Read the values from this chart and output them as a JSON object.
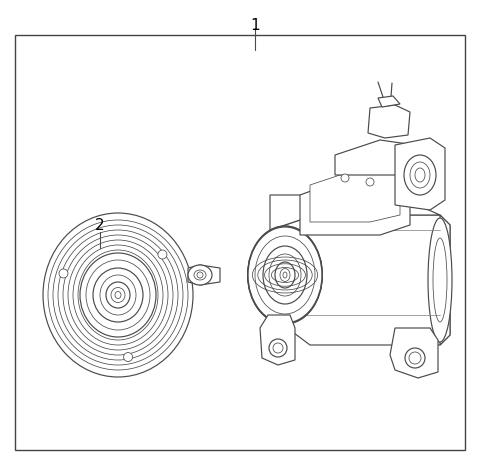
{
  "background_color": "#ffffff",
  "border_color": "#444444",
  "line_color": "#4a4a4a",
  "label_color": "#000000",
  "label_1_text": "1",
  "label_2_text": "2",
  "font_size_labels": 11,
  "fig_width": 4.8,
  "fig_height": 4.65,
  "dpi": 100,
  "lw_main": 0.85,
  "lw_thin": 0.55
}
